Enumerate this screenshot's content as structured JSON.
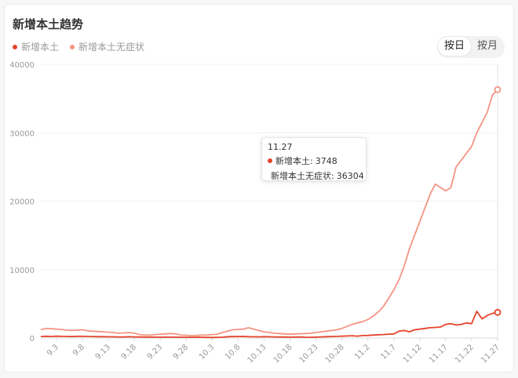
{
  "header": {
    "title": "新增本土趋势"
  },
  "legend": [
    {
      "label": "新增本土",
      "color": "#e5442b"
    },
    {
      "label": "新增本土无症状",
      "color": "#f59483"
    }
  ],
  "toggle": {
    "day_label": "按日",
    "month_label": "按月",
    "active": "按日"
  },
  "tooltip": {
    "date": "11.27",
    "rows": [
      {
        "label": "新增本土:",
        "value": "3748"
      },
      {
        "label": "新增本土无症状:",
        "value": "36304"
      }
    ]
  },
  "chart_data": {
    "type": "line",
    "x": [
      "8.31",
      "9.1",
      "9.2",
      "9.3",
      "9.4",
      "9.5",
      "9.6",
      "9.7",
      "9.8",
      "9.9",
      "9.10",
      "9.11",
      "9.12",
      "9.13",
      "9.14",
      "9.15",
      "9.16",
      "9.17",
      "9.18",
      "9.19",
      "9.20",
      "9.21",
      "9.22",
      "9.23",
      "9.24",
      "9.25",
      "9.26",
      "9.27",
      "9.28",
      "9.29",
      "9.30",
      "10.1",
      "10.2",
      "10.3",
      "10.4",
      "10.5",
      "10.6",
      "10.7",
      "10.8",
      "10.9",
      "10.10",
      "10.11",
      "10.12",
      "10.13",
      "10.14",
      "10.15",
      "10.16",
      "10.17",
      "10.18",
      "10.19",
      "10.20",
      "10.21",
      "10.22",
      "10.23",
      "10.24",
      "10.25",
      "10.26",
      "10.27",
      "10.28",
      "10.29",
      "10.30",
      "10.31",
      "11.1",
      "11.2",
      "11.3",
      "11.4",
      "11.5",
      "11.6",
      "11.7",
      "11.8",
      "11.9",
      "11.10",
      "11.11",
      "11.12",
      "11.13",
      "11.14",
      "11.15",
      "11.16",
      "11.17",
      "11.18",
      "11.19",
      "11.20",
      "11.21",
      "11.22",
      "11.23",
      "11.24",
      "11.25",
      "11.26",
      "11.27"
    ],
    "tick_labels": [
      "9.3",
      "9.8",
      "9.13",
      "9.18",
      "9.23",
      "9.28",
      "10.3",
      "10.8",
      "10.13",
      "10.18",
      "10.23",
      "10.28",
      "11.2",
      "11.7",
      "11.12",
      "11.17",
      "11.22",
      "11.27"
    ],
    "series": [
      {
        "name": "新增本土",
        "color": "#e5442b",
        "values": [
          220,
          250,
          230,
          260,
          240,
          230,
          210,
          240,
          250,
          230,
          220,
          200,
          190,
          180,
          170,
          160,
          150,
          180,
          160,
          150,
          140,
          140,
          130,
          120,
          130,
          130,
          120,
          110,
          100,
          120,
          110,
          100,
          90,
          80,
          100,
          120,
          200,
          210,
          220,
          230,
          200,
          180,
          170,
          190,
          180,
          160,
          150,
          140,
          130,
          140,
          150,
          120,
          100,
          130,
          160,
          200,
          220,
          240,
          260,
          300,
          330,
          280,
          350,
          380,
          420,
          480,
          500,
          560,
          600,
          1000,
          1100,
          900,
          1200,
          1300,
          1400,
          1500,
          1550,
          1600,
          2000,
          2100,
          1900,
          2000,
          2200,
          2100,
          3900,
          2800,
          3300,
          3600,
          3748
        ]
      },
      {
        "name": "新增本土无症状",
        "color": "#f59483",
        "values": [
          1200,
          1400,
          1350,
          1300,
          1250,
          1150,
          1100,
          1150,
          1200,
          1050,
          1000,
          950,
          900,
          850,
          800,
          700,
          750,
          800,
          700,
          500,
          450,
          420,
          500,
          550,
          600,
          650,
          580,
          450,
          400,
          350,
          380,
          420,
          450,
          500,
          550,
          800,
          1000,
          1200,
          1250,
          1300,
          1500,
          1300,
          1100,
          900,
          800,
          700,
          650,
          600,
          550,
          600,
          620,
          650,
          700,
          800,
          900,
          1000,
          1100,
          1200,
          1400,
          1700,
          2000,
          2200,
          2400,
          2700,
          3200,
          3800,
          4600,
          5800,
          7000,
          8500,
          10500,
          13000,
          15000,
          17000,
          19000,
          21000,
          22500,
          22000,
          21500,
          22000,
          25000,
          26000,
          27000,
          28000,
          30000,
          31500,
          33000,
          35500,
          36304
        ]
      }
    ],
    "ylim": [
      0,
      40000
    ],
    "yticks": [
      0,
      10000,
      20000,
      30000,
      40000
    ],
    "grid": true,
    "legend_position": "top-left"
  }
}
